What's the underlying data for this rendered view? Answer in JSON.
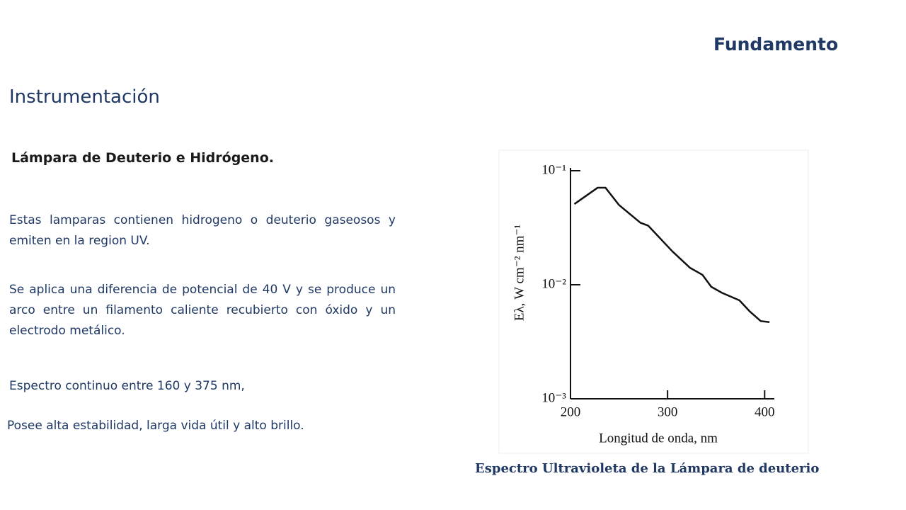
{
  "header": {
    "title": "Fundamento"
  },
  "section_title": "Instrumentación",
  "subtitle": "Lámpara de Deuterio e Hidrógeno.",
  "paragraphs": [
    "Estas lamparas contienen hidrogeno o deuterio gaseosos y emiten en la region UV.",
    "Se aplica una diferencia de potencial de 40 V y se produce un arco entre un filamento caliente recubierto con óxido y un electrodo metálico.",
    "Espectro continuo entre 160 y 375 nm,",
    "Posee alta estabilidad, larga vida útil y alto brillo."
  ],
  "figure_caption": "Espectro Ultravioleta de la Lámpara de deuterio",
  "chart_data": {
    "type": "line",
    "x_label": "Longitud de onda, nm",
    "y_label": "Eλ, W cm⁻² nm⁻¹",
    "log_y": true,
    "color": "#111111",
    "xlim": [
      200,
      410
    ],
    "ylim": [
      0.001,
      0.1
    ],
    "xticks": [
      200,
      300,
      400
    ],
    "yticks": [
      {
        "value": 0.1,
        "label": "10⁻¹"
      },
      {
        "value": 0.01,
        "label": "10⁻²"
      },
      {
        "value": 0.001,
        "label": "10⁻³"
      }
    ],
    "x": [
      204,
      228,
      236,
      250,
      272,
      280,
      305,
      323,
      336,
      345,
      356,
      374,
      385,
      396,
      405
    ],
    "values": [
      0.051,
      0.071,
      0.071,
      0.05,
      0.035,
      0.033,
      0.0196,
      0.0141,
      0.0122,
      0.0096,
      0.0085,
      0.0073,
      0.0058,
      0.0048,
      0.0047
    ]
  }
}
